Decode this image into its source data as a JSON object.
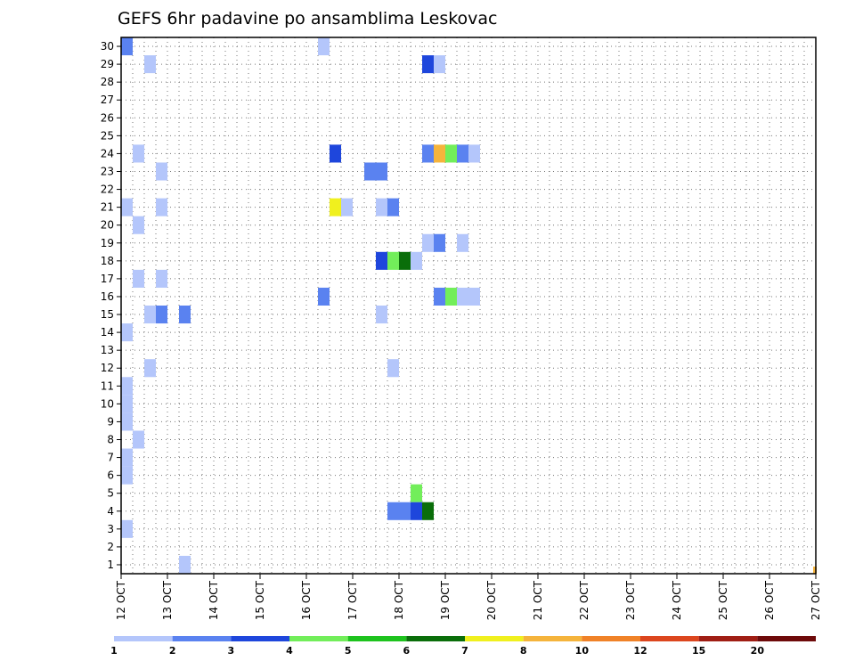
{
  "chart_data": {
    "type": "heatmap",
    "title": "GEFS 6hr padavine po ansamblima Leskovac",
    "xlabel": "",
    "ylabel": "",
    "x_ticks": [
      "12 OCT",
      "13 OCT",
      "14 OCT",
      "15 OCT",
      "16 OCT",
      "17 OCT",
      "18 OCT",
      "19 OCT",
      "20 OCT",
      "21 OCT",
      "22 OCT",
      "23 OCT",
      "24 OCT",
      "25 OCT",
      "26 OCT",
      "27 OCT"
    ],
    "y_ticks": [
      "1",
      "2",
      "3",
      "4",
      "5",
      "6",
      "7",
      "8",
      "9",
      "10",
      "11",
      "12",
      "13",
      "14",
      "15",
      "16",
      "17",
      "18",
      "19",
      "20",
      "21",
      "22",
      "23",
      "24",
      "25",
      "26",
      "27",
      "28",
      "29",
      "30"
    ],
    "xlim": [
      0,
      60
    ],
    "ylim": [
      0.5,
      30.5
    ],
    "x_step_hours": 6,
    "grid": true,
    "legend_placement": "bottom",
    "legend": {
      "labels": [
        "1",
        "2",
        "3",
        "4",
        "5",
        "6",
        "7",
        "8",
        "10",
        "12",
        "15",
        "20"
      ],
      "colors": [
        "#b4c6fb",
        "#5a82f0",
        "#1e46dc",
        "#72ee5a",
        "#1ec31e",
        "#0a6e0a",
        "#f0f01e",
        "#f5b43c",
        "#f08228",
        "#dc461e",
        "#a01e14",
        "#6e0a0a"
      ]
    },
    "cells": [
      {
        "member": 30,
        "step": 0,
        "cls": 2
      },
      {
        "member": 30,
        "step": 17,
        "cls": 1
      },
      {
        "member": 29,
        "step": 2,
        "cls": 1
      },
      {
        "member": 29,
        "step": 26,
        "cls": 3
      },
      {
        "member": 29,
        "step": 27,
        "cls": 1
      },
      {
        "member": 24,
        "step": 1,
        "cls": 1
      },
      {
        "member": 24,
        "step": 18,
        "cls": 3
      },
      {
        "member": 24,
        "step": 26,
        "cls": 2
      },
      {
        "member": 24,
        "step": 27,
        "cls": 8
      },
      {
        "member": 24,
        "step": 28,
        "cls": 4
      },
      {
        "member": 24,
        "step": 29,
        "cls": 2
      },
      {
        "member": 24,
        "step": 30,
        "cls": 1
      },
      {
        "member": 23,
        "step": 3,
        "cls": 1
      },
      {
        "member": 23,
        "step": 21,
        "cls": 2
      },
      {
        "member": 23,
        "step": 22,
        "cls": 2
      },
      {
        "member": 21,
        "step": 0,
        "cls": 1
      },
      {
        "member": 21,
        "step": 3,
        "cls": 1
      },
      {
        "member": 21,
        "step": 18,
        "cls": 7
      },
      {
        "member": 21,
        "step": 19,
        "cls": 1
      },
      {
        "member": 21,
        "step": 22,
        "cls": 1
      },
      {
        "member": 21,
        "step": 23,
        "cls": 2
      },
      {
        "member": 20,
        "step": 1,
        "cls": 1
      },
      {
        "member": 19,
        "step": 26,
        "cls": 1
      },
      {
        "member": 19,
        "step": 27,
        "cls": 2
      },
      {
        "member": 19,
        "step": 29,
        "cls": 1
      },
      {
        "member": 18,
        "step": 22,
        "cls": 3
      },
      {
        "member": 18,
        "step": 23,
        "cls": 4
      },
      {
        "member": 18,
        "step": 24,
        "cls": 6
      },
      {
        "member": 18,
        "step": 25,
        "cls": 1
      },
      {
        "member": 17,
        "step": 1,
        "cls": 1
      },
      {
        "member": 17,
        "step": 3,
        "cls": 1
      },
      {
        "member": 16,
        "step": 27,
        "cls": 2
      },
      {
        "member": 16,
        "step": 28,
        "cls": 4
      },
      {
        "member": 16,
        "step": 29,
        "cls": 1
      },
      {
        "member": 16,
        "step": 30,
        "cls": 1
      },
      {
        "member": 16,
        "step": 17,
        "cls": 2
      },
      {
        "member": 15,
        "step": 2,
        "cls": 1
      },
      {
        "member": 15,
        "step": 3,
        "cls": 2
      },
      {
        "member": 15,
        "step": 5,
        "cls": 2
      },
      {
        "member": 15,
        "step": 22,
        "cls": 1
      },
      {
        "member": 14,
        "step": 0,
        "cls": 1
      },
      {
        "member": 12,
        "step": 2,
        "cls": 1
      },
      {
        "member": 12,
        "step": 23,
        "cls": 1
      },
      {
        "member": 11,
        "step": 0,
        "cls": 1
      },
      {
        "member": 10,
        "step": 0,
        "cls": 1
      },
      {
        "member": 9,
        "step": 0,
        "cls": 1
      },
      {
        "member": 8,
        "step": 1,
        "cls": 1
      },
      {
        "member": 7,
        "step": 0,
        "cls": 1
      },
      {
        "member": 6,
        "step": 0,
        "cls": 1
      },
      {
        "member": 5,
        "step": 25,
        "cls": 4
      },
      {
        "member": 4,
        "step": 23,
        "cls": 2
      },
      {
        "member": 4,
        "step": 24,
        "cls": 2
      },
      {
        "member": 4,
        "step": 25,
        "cls": 3
      },
      {
        "member": 4,
        "step": 26,
        "cls": 6
      },
      {
        "member": 3,
        "step": 0,
        "cls": 1
      },
      {
        "member": 1,
        "step": 5,
        "cls": 1
      }
    ]
  }
}
